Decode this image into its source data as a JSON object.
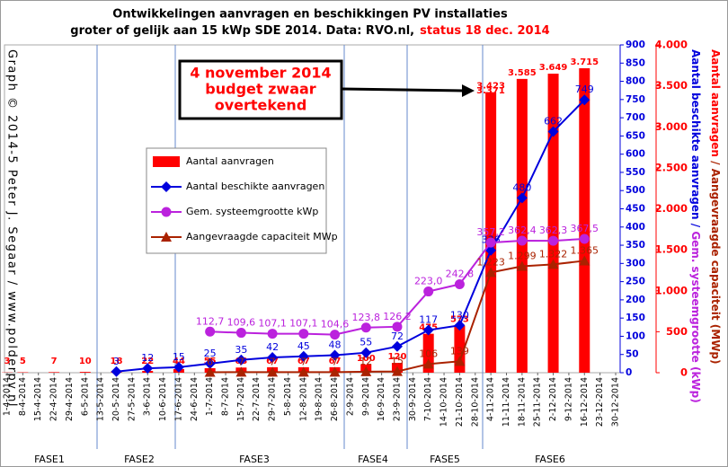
{
  "chart_data": {
    "type": "bar-line",
    "title": [
      "Ontwikkelingen  aanvragen en beschikkingen  PV installaties",
      "groter of gelijk aan 15 kWp SDE 2014. Data: RVO.nl,"
    ],
    "title_status": "status 18 dec. 2014",
    "side_note": "Graph  ©  2014-5  Peter J.  Segaar  /  www.polderpv.nl",
    "y_label": [
      "Aantal beschikte aanvragen",
      " / ",
      "Gem. systeemgrootte (kWp)"
    ],
    "y2_label": [
      "Aantal aanvragen",
      " / ",
      "Aangevraagde capaciteit (MWp)"
    ],
    "annotation": [
      "4 november 2014",
      "budget zwaar",
      "overtekend"
    ],
    "extra_label": "3.371",
    "phases": [
      "FASE1",
      "FASE2",
      "FASE3",
      "FASE4",
      "FASE5",
      "FASE6"
    ],
    "categories": [
      "1-4-2014",
      "8-4-2014",
      "15-4-2014",
      "22-4-2014",
      "29-4-2014",
      "6-5-2014",
      "13-5-2014",
      "20-5-2014",
      "27-5-2014",
      "3-6-2014",
      "10-6-2014",
      "17-6-2014",
      "24-6-2014",
      "1-7-2014",
      "8-7-2014",
      "15-7-2014",
      "22-7-2014",
      "29-7-2014",
      "5-8-2014",
      "12-8-2014",
      "19-8-2014",
      "26-8-2014",
      "2-9-2014",
      "9-9-2014",
      "16-9-2014",
      "23-9-2014",
      "30-9-2014",
      "7-10-2014",
      "14-10-2014",
      "21-10-2014",
      "28-10-2014",
      "4-11-2014",
      "11-11-2014",
      "18-11-2014",
      "25-11-2014",
      "2-12-2014",
      "9-12-2014",
      "16-12-2014",
      "23-12-2014",
      "30-12-2014"
    ],
    "ylim": [
      0,
      900
    ],
    "yticks": [
      0,
      50,
      100,
      150,
      200,
      250,
      300,
      350,
      400,
      450,
      500,
      550,
      600,
      650,
      700,
      750,
      800,
      850,
      900
    ],
    "y2lim": [
      0,
      4000
    ],
    "y2ticks": [
      0,
      500,
      {
        "value": 1000,
        "label": "1.000"
      },
      {
        "value": 1500,
        "label": "1.500"
      },
      {
        "value": 2000,
        "label": "2.000"
      },
      {
        "value": 2500,
        "label": "2.500"
      },
      {
        "value": 3000,
        "label": "3.000"
      },
      {
        "value": 3500,
        "label": "3.500"
      },
      {
        "value": 4000,
        "label": "4.000"
      }
    ],
    "series": [
      {
        "name": "Aantal aanvragen",
        "kind": "bar",
        "axis": "y2",
        "color": "#ff0000",
        "x": [
          "1-4-2014",
          "8-4-2014",
          "22-4-2014",
          "6-5-2014",
          "20-5-2014",
          "3-6-2014",
          "17-6-2014",
          "1-7-2014",
          "15-7-2014",
          "29-7-2014",
          "12-8-2014",
          "26-8-2014",
          "9-9-2014",
          "23-9-2014",
          "7-10-2014",
          "21-10-2014",
          "4-11-2014",
          "18-11-2014",
          "2-12-2014",
          "16-12-2014"
        ],
        "values": [
          3,
          5,
          7,
          10,
          18,
          22,
          44,
          55,
          63,
          67,
          67,
          67,
          100,
          120,
          475,
          573,
          3423,
          3585,
          3649,
          3715
        ],
        "value_labels": [
          "3",
          "5",
          "7",
          "10",
          "18",
          "22",
          "44",
          "55",
          "63",
          "67",
          "67",
          "67",
          "100",
          "120",
          "475",
          "573",
          "3.423",
          "3.585",
          "3.649",
          "3.715"
        ]
      },
      {
        "name": "Aantal beschikte aanvragen",
        "kind": "line",
        "marker": "diamond",
        "color": "#0000dd",
        "x": [
          "20-5-2014",
          "3-6-2014",
          "17-6-2014",
          "1-7-2014",
          "15-7-2014",
          "29-7-2014",
          "12-8-2014",
          "26-8-2014",
          "9-9-2014",
          "23-9-2014",
          "7-10-2014",
          "21-10-2014",
          "4-11-2014",
          "18-11-2014",
          "2-12-2014",
          "16-12-2014"
        ],
        "values": [
          3,
          12,
          15,
          25,
          35,
          42,
          45,
          48,
          55,
          72,
          117,
          130,
          336,
          480,
          662,
          749
        ]
      },
      {
        "name": "Gem. systeemgrootte kWp",
        "kind": "line",
        "marker": "circle",
        "color": "#bb22dd",
        "x": [
          "1-7-2014",
          "15-7-2014",
          "29-7-2014",
          "12-8-2014",
          "26-8-2014",
          "9-9-2014",
          "23-9-2014",
          "7-10-2014",
          "21-10-2014",
          "4-11-2014",
          "18-11-2014",
          "2-12-2014",
          "16-12-2014"
        ],
        "values": [
          112.7,
          109.6,
          107.1,
          107.1,
          104.6,
          123.8,
          126.2,
          223.0,
          242.8,
          357.2,
          362.4,
          362.3,
          367.5
        ],
        "value_labels": [
          "112,7",
          "109,6",
          "107,1",
          "107,1",
          "104,6",
          "123,8",
          "126,2",
          "223,0",
          "242,8",
          "357,2",
          "362,4",
          "362,3",
          "367,5"
        ]
      },
      {
        "name": "Aangevraagde capaciteit MWp",
        "kind": "line",
        "marker": "triangle",
        "axis": "y2",
        "color": "#aa2200",
        "x": [
          "1-7-2014",
          "15-7-2014",
          "29-7-2014",
          "12-8-2014",
          "26-8-2014",
          "9-9-2014",
          "23-9-2014",
          "7-10-2014",
          "21-10-2014",
          "4-11-2014",
          "18-11-2014",
          "2-12-2014",
          "16-12-2014"
        ],
        "values": [
          6,
          7,
          7,
          7,
          7,
          12,
          15,
          106,
          139,
          1223,
          1299,
          1322,
          1365
        ],
        "value_labels": [
          "6",
          "7",
          "7",
          "7",
          "7",
          "12",
          "15",
          "106",
          "139",
          "1.223",
          "1.299",
          "1.322",
          "1.365"
        ]
      }
    ]
  }
}
